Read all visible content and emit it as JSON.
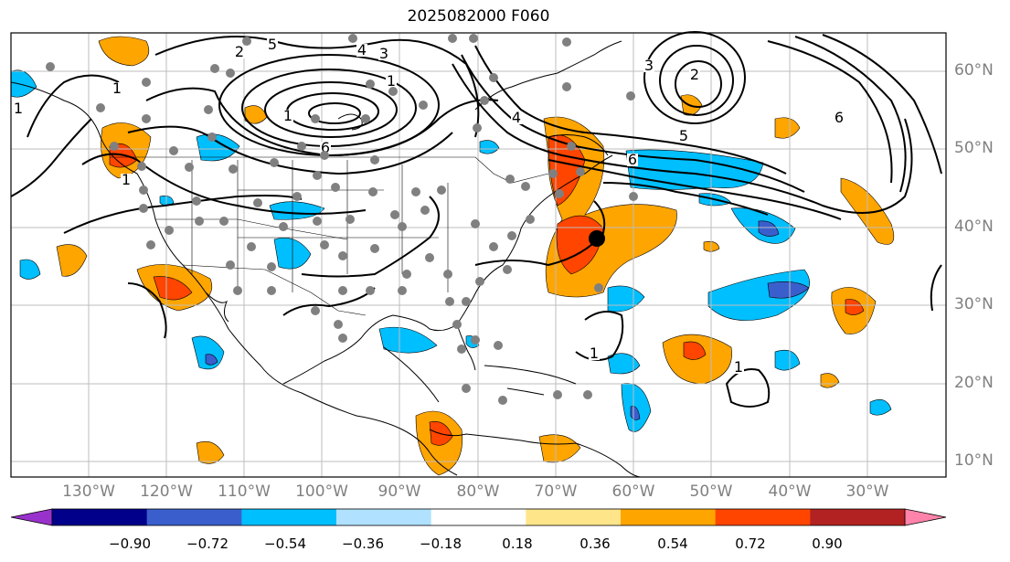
{
  "title": "2025082000 F060",
  "lat_labels": [
    "60°N",
    "50°N",
    "40°N",
    "30°N",
    "20°N",
    "10°N"
  ],
  "lon_labels": [
    "130°W",
    "120°W",
    "110°W",
    "100°W",
    "90°W",
    "80°W",
    "70°W",
    "60°W",
    "50°W",
    "40°W",
    "30°W"
  ],
  "colorbar": {
    "ticks": [
      "−0.90",
      "−0.72",
      "−0.54",
      "−0.36",
      "−0.18",
      "0.18",
      "0.36",
      "0.54",
      "0.72",
      "0.90"
    ],
    "colors": [
      "#9932cc",
      "#00008b",
      "#3a5fcd",
      "#00bfff",
      "#b0e2ff",
      "#ffffff",
      "#ffe58a",
      "#ffa500",
      "#ff4500",
      "#b22222",
      "#ff83aa"
    ]
  },
  "contour_labels": [
    "1",
    "3",
    "5",
    "6",
    "4",
    "2",
    "1",
    "1",
    "1",
    "2",
    "3",
    "4",
    "5",
    "6",
    "6",
    "1",
    "1",
    "1"
  ],
  "shading_colors": {
    "pos1": "#ffa500",
    "pos2": "#ff4500",
    "neg1": "#00bfff",
    "neg2": "#3a5fcd"
  }
}
